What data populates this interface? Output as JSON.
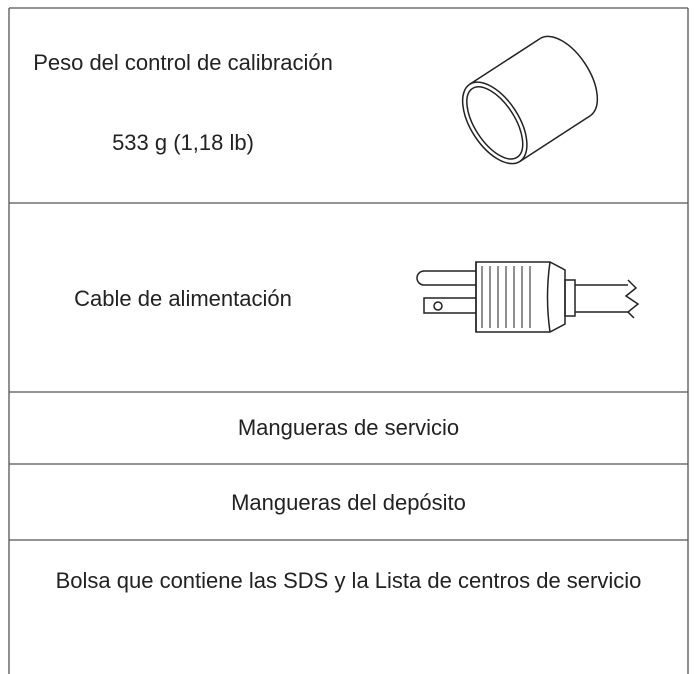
{
  "table": {
    "rows": [
      {
        "label": "Peso del control de calibración",
        "value": "533 g (1,18 lb)"
      },
      {
        "label": "Cable de alimentación"
      },
      {
        "label": "Mangueras de servicio"
      },
      {
        "label": "Mangueras del depósito"
      },
      {
        "label": "Bolsa que contiene las SDS y la Lista de centros de servicio"
      }
    ]
  }
}
